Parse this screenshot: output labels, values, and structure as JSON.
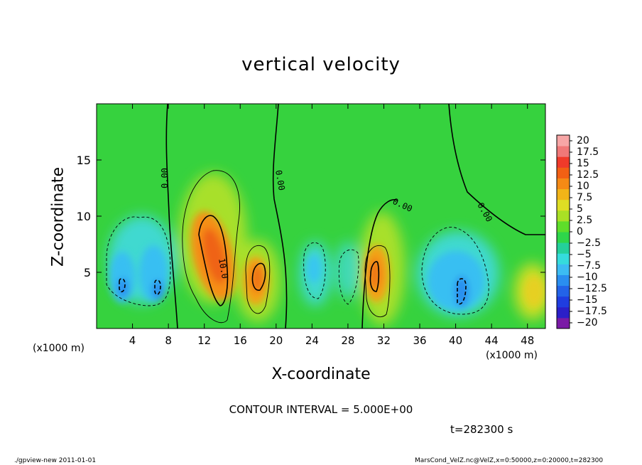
{
  "chart_data": {
    "type": "heatmap",
    "title": "vertical velocity",
    "xlabel": "X-coordinate",
    "ylabel": "Z-coordinate",
    "x_unit_left": "(x1000 m)",
    "x_unit_right": "(x1000 m)",
    "xlim": [
      0,
      50
    ],
    "ylim": [
      0,
      20
    ],
    "x_ticks": [
      4,
      8,
      12,
      16,
      20,
      24,
      28,
      32,
      36,
      40,
      44,
      48
    ],
    "y_ticks": [
      5,
      10,
      15
    ],
    "colorbar": {
      "levels": [
        -20,
        -17.5,
        -15,
        -12.5,
        -10,
        -7.5,
        -5,
        -2.5,
        0,
        2.5,
        5,
        7.5,
        10,
        12.5,
        15,
        17.5,
        20
      ],
      "labels": [
        "20",
        "17.5",
        "15",
        "12.5",
        "10",
        "7.5",
        "5",
        "2.5",
        "0",
        "−2.5",
        "−5",
        "−7.5",
        "−10",
        "−12.5",
        "−15",
        "−17.5",
        "−20"
      ],
      "colors": [
        "#7a1aa6",
        "#2b1fc8",
        "#1f3de0",
        "#2363e8",
        "#2a8ef0",
        "#3cbcf3",
        "#35dcdc",
        "#24d09a",
        "#2ed64a",
        "#5ede2a",
        "#a9e025",
        "#dede24",
        "#f2b418",
        "#f58a15",
        "#f26014",
        "#f03a2a",
        "#f07878",
        "#f7a6a6"
      ]
    },
    "contour_interval_text": "CONTOUR INTERVAL = 5.000E+00",
    "contour_labels": [
      "0.00",
      "0.00",
      "0.00",
      "0.00",
      "10.0"
    ],
    "features": [
      {
        "kind": "updraft",
        "x": 13.5,
        "z": 6.5,
        "peak": 13
      },
      {
        "kind": "updraft",
        "x": 18.2,
        "z": 4.5,
        "peak": 12
      },
      {
        "kind": "updraft",
        "x": 31,
        "z": 5,
        "peak": 11
      },
      {
        "kind": "updraft",
        "x": 48.5,
        "z": 4,
        "peak": 6
      },
      {
        "kind": "downdraft",
        "x": 3,
        "z": 4,
        "peak": -8
      },
      {
        "kind": "downdraft",
        "x": 6.5,
        "z": 5,
        "peak": -8
      },
      {
        "kind": "downdraft",
        "x": 24,
        "z": 5,
        "peak": -7
      },
      {
        "kind": "downdraft",
        "x": 41,
        "z": 3.5,
        "peak": -9
      },
      {
        "kind": "downdraft",
        "x": 28.5,
        "z": 5.5,
        "peak": -4
      }
    ]
  },
  "time_label": "t=282300 s",
  "footer_left": "./gpview-new   2011-01-01",
  "footer_right": "MarsCond_VelZ.nc@VelZ,x=0:50000,z=0:20000,t=282300"
}
